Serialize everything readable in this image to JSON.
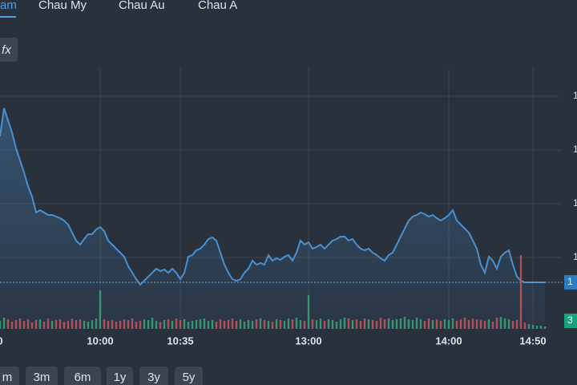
{
  "tabs": [
    "am",
    "Chau My",
    "Chau Au",
    "Chau A"
  ],
  "fx_button": "fx",
  "ranges": [
    "m",
    "3m",
    "6m",
    "1y",
    "3y",
    "5y"
  ],
  "price_badge": "1",
  "volume_badge": "3",
  "chart_data": {
    "type": "line",
    "x": [
      0,
      1,
      2,
      3,
      4,
      5,
      6,
      7,
      8,
      9,
      10,
      11,
      12,
      13,
      14,
      15,
      16,
      17,
      18,
      19,
      20,
      21,
      22,
      23,
      24,
      25,
      26,
      27,
      28,
      29,
      30,
      31,
      32,
      33,
      34,
      35,
      36,
      37,
      38,
      39,
      40,
      41,
      42,
      43,
      44,
      45,
      46,
      47,
      48,
      49,
      50,
      51,
      52,
      53,
      54,
      55,
      56,
      57,
      58,
      59,
      60,
      61,
      62,
      63,
      64,
      65,
      66,
      67,
      68,
      69,
      70,
      71,
      72,
      73,
      74,
      75,
      76,
      77,
      78,
      79,
      80,
      81,
      82,
      83,
      84,
      85,
      86,
      87,
      88,
      89,
      90,
      91,
      92,
      93,
      94,
      95,
      96,
      97,
      98,
      99,
      100,
      101,
      102,
      103,
      104,
      105,
      106,
      107,
      108,
      109,
      110,
      111,
      112,
      113,
      114,
      115,
      116,
      117,
      118,
      119,
      120,
      121,
      122,
      123,
      124,
      125,
      126,
      127,
      128,
      129,
      130,
      131,
      132,
      133,
      134,
      135,
      136
    ],
    "series": [
      {
        "color": "#4a90d0",
        "values": [
          240,
          275,
          260,
          245,
          225,
          210,
          195,
          178,
          165,
          145,
          148,
          145,
          142,
          142,
          140,
          138,
          135,
          130,
          120,
          110,
          105,
          112,
          118,
          118,
          124,
          127,
          122,
          110,
          105,
          100,
          95,
          90,
          78,
          70,
          62,
          55,
          60,
          65,
          70,
          75,
          72,
          74,
          70,
          75,
          70,
          62,
          70,
          90,
          92,
          98,
          100,
          105,
          112,
          114,
          110,
          95,
          80,
          70,
          62,
          60,
          62,
          70,
          75,
          85,
          80,
          82,
          80,
          92,
          85,
          88,
          86,
          90,
          92,
          85,
          95,
          110,
          105,
          108,
          100,
          102,
          105,
          100,
          105,
          110,
          112,
          115,
          115,
          110,
          112,
          105,
          100,
          98,
          100,
          95,
          92,
          88,
          85,
          92,
          95,
          105,
          115,
          125,
          135,
          140,
          142,
          145,
          143,
          140,
          142,
          138,
          135,
          138,
          142,
          148,
          135,
          130,
          125,
          120,
          110,
          100,
          80,
          70,
          90,
          85,
          75,
          90,
          95,
          98,
          80,
          65,
          60,
          58,
          58,
          58,
          58,
          58,
          58
        ]
      },
      {
        "type": "bar",
        "axis": "y2",
        "colors": [
          "#3aa57a",
          "#c8545a"
        ],
        "values": [
          10,
          14,
          12,
          9,
          11,
          13,
          10,
          12,
          8,
          11,
          12,
          9,
          13,
          10,
          11,
          12,
          9,
          10,
          13,
          11,
          12,
          10,
          9,
          11,
          13,
          48,
          12,
          10,
          11,
          9,
          10,
          12,
          11,
          13,
          9,
          10,
          12,
          11,
          14,
          10,
          9,
          11,
          12,
          10,
          13,
          11,
          12,
          9,
          10,
          11,
          12,
          13,
          10,
          11,
          9,
          12,
          10,
          11,
          13,
          10,
          12,
          9,
          11,
          10,
          12,
          13,
          11,
          10,
          9,
          12,
          11,
          10,
          13,
          12,
          14,
          11,
          10,
          42,
          12,
          11,
          13,
          10,
          12,
          11,
          9,
          12,
          14,
          13,
          11,
          12,
          10,
          13,
          12,
          11,
          10,
          14,
          12,
          13,
          11,
          12,
          13,
          15,
          12,
          11,
          14,
          12,
          10,
          13,
          11,
          12,
          10,
          12,
          11,
          13,
          10,
          12,
          14,
          11,
          13,
          12,
          11,
          10,
          12,
          9,
          14,
          15,
          13,
          12,
          10,
          11,
          92,
          8,
          6,
          5,
          4,
          4,
          3
        ]
      }
    ],
    "xlim": [
      0,
      136
    ],
    "xticks": [
      {
        "value": 0,
        "label": "0"
      },
      {
        "value": 25,
        "label": "10:00"
      },
      {
        "value": 45,
        "label": "10:35"
      },
      {
        "value": 77,
        "label": "13:00"
      },
      {
        "value": 112,
        "label": "14:00"
      },
      {
        "value": 133,
        "label": "14:50"
      }
    ],
    "ylim": [
      0,
      325
    ],
    "yticks": [
      {
        "value": 89,
        "label": "1"
      },
      {
        "value": 156,
        "label": "1"
      },
      {
        "value": 223,
        "label": "1"
      },
      {
        "value": 290,
        "label": "1"
      }
    ],
    "y2lim": [
      0,
      325
    ],
    "grid": true
  }
}
